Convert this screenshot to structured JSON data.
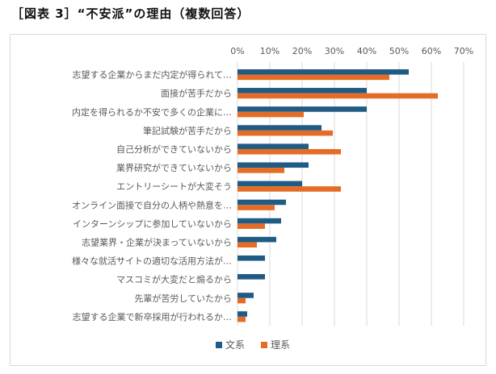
{
  "figure_title": "［図表 3］“不安派”の理由（複数回答）",
  "colors": {
    "bunkei": "#1f5b85",
    "rikei": "#e46c26",
    "grid": "#d9d9d9"
  },
  "chart_data": {
    "type": "bar",
    "orientation": "horizontal",
    "title": "",
    "xlabel": "",
    "ylabel": "",
    "xlim": [
      0,
      70
    ],
    "xticks": [
      0,
      10,
      20,
      30,
      40,
      50,
      60,
      70
    ],
    "tick_suffix": "%",
    "grid": true,
    "legend_position": "bottom",
    "categories": [
      "志望する企業からまだ内定が得られて…",
      "面接が苦手だから",
      "内定を得られるか不安で多くの企業に…",
      "筆記試験が苦手だから",
      "自己分析ができていないから",
      "業界研究ができていないから",
      "エントリーシートが大変そう",
      "オンライン面接で自分の人柄や熱意を…",
      "インターンシップに参加していないから",
      "志望業界・企業が決まっていないから",
      "様々な就活サイトの適切な活用方法が…",
      "マスコミが大変だと煽るから",
      "先輩が苦労していたから",
      "志望する企業で新卒採用が行われるか…"
    ],
    "series": [
      {
        "name": "文系",
        "values": [
          53,
          40,
          40,
          26,
          22,
          22,
          20,
          15,
          13.5,
          12,
          8.5,
          8.5,
          5,
          3
        ]
      },
      {
        "name": "理系",
        "values": [
          47,
          62,
          20.5,
          29.5,
          32,
          14.5,
          32,
          11.5,
          8.5,
          6,
          0,
          0,
          2.5,
          2.5
        ]
      }
    ]
  }
}
